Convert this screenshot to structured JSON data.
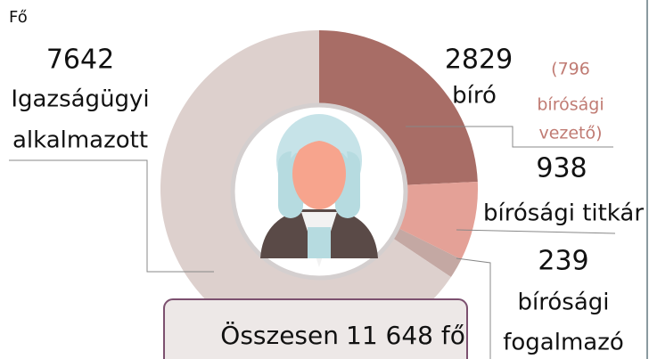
{
  "chart_data": {
    "type": "pie",
    "unit": "Fő",
    "categories": [
      [
        "bíró"
      ],
      [
        "bírósági titkár"
      ],
      [
        "bírósági",
        "fogalmazó"
      ],
      [
        "Igazságügyi",
        "alkalmazott"
      ]
    ],
    "values": [
      2829,
      938,
      239,
      7642
    ],
    "colors": [
      "#a86d66",
      "#e4a197",
      "#c4a8a3",
      "#ddd0cd"
    ],
    "note": [
      "(796",
      "bírósági",
      "vezető)"
    ],
    "total_prefix": "Összesen",
    "total_label": "11 648 fő"
  }
}
